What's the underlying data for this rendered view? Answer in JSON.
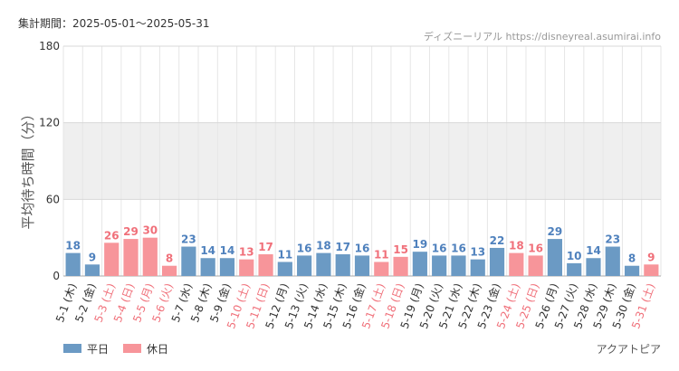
{
  "header": {
    "period": "集計期間：2025-05-01～2025-05-31",
    "source": "ディズニーリアル https://disneyreal.asumirai.info"
  },
  "attraction": "アクアトピア",
  "chart_data": {
    "type": "bar",
    "ylabel": "平均待ち時間（分）",
    "xlabel": "",
    "ylim": [
      0,
      180
    ],
    "yticks": [
      0,
      60,
      120,
      180
    ],
    "shaded_band": [
      60,
      120
    ],
    "categories": [
      "5-1 (木)",
      "5-2 (金)",
      "5-3 (土)",
      "5-4 (日)",
      "5-5 (月)",
      "5-6 (火)",
      "5-7 (水)",
      "5-8 (木)",
      "5-9 (金)",
      "5-10 (土)",
      "5-11 (日)",
      "5-12 (月)",
      "5-13 (火)",
      "5-14 (水)",
      "5-15 (木)",
      "5-16 (金)",
      "5-17 (土)",
      "5-18 (日)",
      "5-19 (月)",
      "5-20 (火)",
      "5-21 (水)",
      "5-22 (木)",
      "5-23 (金)",
      "5-24 (土)",
      "5-25 (日)",
      "5-26 (月)",
      "5-27 (火)",
      "5-28 (水)",
      "5-29 (木)",
      "5-30 (金)",
      "5-31 (土)"
    ],
    "values": [
      18,
      9,
      26,
      29,
      30,
      8,
      23,
      14,
      14,
      13,
      17,
      11,
      16,
      18,
      17,
      16,
      11,
      15,
      19,
      16,
      16,
      13,
      22,
      18,
      16,
      29,
      10,
      14,
      23,
      8,
      9
    ],
    "day_type": [
      "weekday",
      "weekday",
      "holiday",
      "holiday",
      "holiday",
      "holiday",
      "weekday",
      "weekday",
      "weekday",
      "holiday",
      "holiday",
      "weekday",
      "weekday",
      "weekday",
      "weekday",
      "weekday",
      "holiday",
      "holiday",
      "weekday",
      "weekday",
      "weekday",
      "weekday",
      "weekday",
      "holiday",
      "holiday",
      "weekday",
      "weekday",
      "weekday",
      "weekday",
      "weekday",
      "holiday"
    ],
    "legend": [
      {
        "key": "weekday",
        "label": "平日",
        "color": "#6b9ac4"
      },
      {
        "key": "holiday",
        "label": "休日",
        "color": "#f7959a"
      }
    ],
    "label_colors": {
      "weekday": "#4f81bd",
      "holiday": "#f0707a",
      "weekday_tick": "#333333",
      "holiday_tick": "#f0707a"
    }
  }
}
